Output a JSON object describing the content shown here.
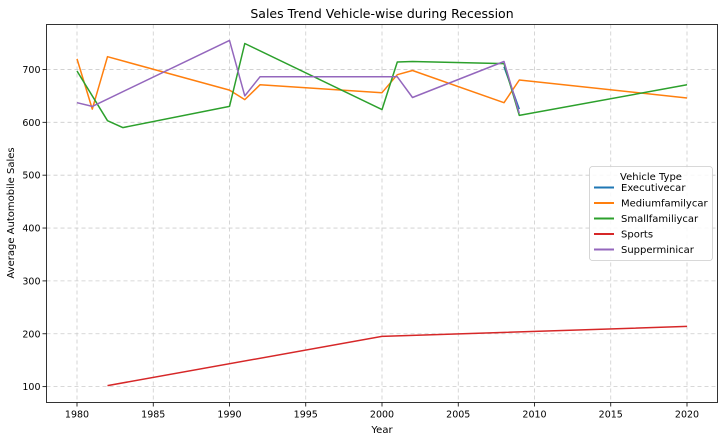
{
  "chart_data": {
    "type": "line",
    "title": "Sales Trend Vehicle-wise during Recession",
    "xlabel": "Year",
    "ylabel": "Average Automobile Sales",
    "xlim": [
      1978,
      2022
    ],
    "ylim": [
      70,
      785
    ],
    "xticks": [
      1980,
      1985,
      1990,
      1995,
      2000,
      2005,
      2010,
      2015,
      2020
    ],
    "yticks": [
      100,
      200,
      300,
      400,
      500,
      600,
      700
    ],
    "grid": true,
    "legend_position": "center-right",
    "legend_title": "Vehicle Type",
    "series": [
      {
        "name": "Executivecar",
        "color": "#1f77b4",
        "points": [
          [
            2008,
            705
          ],
          [
            2009,
            625
          ]
        ]
      },
      {
        "name": "Mediumfamilycar",
        "color": "#ff7f0e",
        "points": [
          [
            1980,
            720
          ],
          [
            1981,
            625
          ],
          [
            1982,
            724
          ],
          [
            1990,
            661
          ],
          [
            1991,
            643
          ],
          [
            1992,
            671
          ],
          [
            2000,
            656
          ],
          [
            2001,
            690
          ],
          [
            2002,
            698
          ],
          [
            2008,
            637
          ],
          [
            2009,
            680
          ],
          [
            2020,
            646
          ]
        ]
      },
      {
        "name": "Smallfamiliycar",
        "color": "#2ca02c",
        "points": [
          [
            1980,
            697
          ],
          [
            1982,
            603
          ],
          [
            1983,
            590
          ],
          [
            1990,
            630
          ],
          [
            1991,
            749
          ],
          [
            2000,
            624
          ],
          [
            2001,
            714
          ],
          [
            2002,
            715
          ],
          [
            2008,
            711
          ],
          [
            2009,
            613
          ],
          [
            2020,
            671
          ]
        ]
      },
      {
        "name": "Sports",
        "color": "#d62728",
        "points": [
          [
            1982,
            102
          ],
          [
            2000,
            195
          ],
          [
            2020,
            214
          ]
        ]
      },
      {
        "name": "Supperminicar",
        "color": "#9467bd",
        "points": [
          [
            1980,
            637
          ],
          [
            1981,
            630
          ],
          [
            1990,
            755
          ],
          [
            1991,
            650
          ],
          [
            1992,
            686
          ],
          [
            2000,
            686
          ],
          [
            2001,
            686
          ],
          [
            2002,
            647
          ],
          [
            2008,
            715
          ],
          [
            2009,
            617
          ]
        ]
      }
    ]
  }
}
